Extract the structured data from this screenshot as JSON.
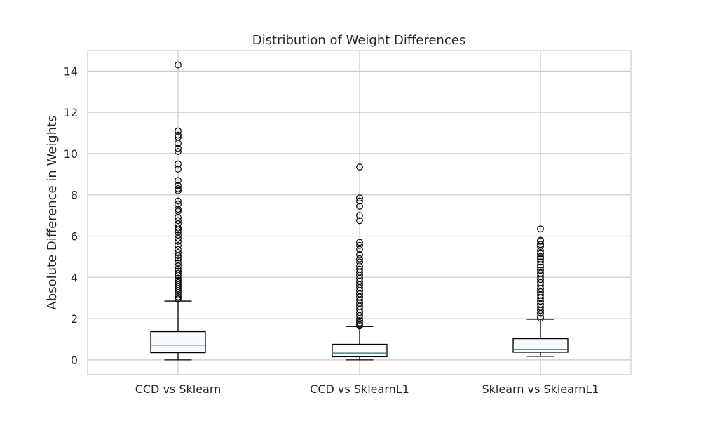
{
  "chart_data": {
    "type": "box",
    "title": "Distribution of Weight Differences",
    "xlabel": "",
    "ylabel": "Absolute Difference in Weights",
    "ylim": [
      -0.72,
      15.0
    ],
    "yticks": [
      0,
      2,
      4,
      6,
      8,
      10,
      12,
      14
    ],
    "grid": true,
    "categories": [
      "CCD vs Sklearn",
      "CCD vs SklearnL1",
      "Sklearn vs SklearnL1"
    ],
    "boxes": [
      {
        "label": "CCD vs Sklearn",
        "whisker_low": 0.0,
        "q1": 0.35,
        "median": 0.72,
        "q3": 1.37,
        "whisker_high": 2.85,
        "outliers": [
          14.3,
          11.1,
          10.9,
          10.8,
          10.5,
          10.25,
          10.1,
          9.5,
          9.25,
          8.7,
          8.45,
          8.3,
          8.2,
          7.7,
          7.55,
          7.3,
          7.2,
          6.9,
          6.75,
          6.6,
          6.4,
          6.3,
          6.2,
          6.05,
          5.9,
          5.75,
          5.55,
          5.35,
          5.2,
          5.05,
          4.95,
          4.85,
          4.7,
          4.55,
          4.4,
          4.3,
          4.2,
          4.1,
          3.95,
          3.85,
          3.75,
          3.65,
          3.55,
          3.45,
          3.35,
          3.25,
          3.15,
          3.05,
          2.95
        ]
      },
      {
        "label": "CCD vs SklearnL1",
        "whisker_low": 0.0,
        "q1": 0.15,
        "median": 0.33,
        "q3": 0.76,
        "whisker_high": 1.62,
        "outliers": [
          9.35,
          7.85,
          7.7,
          7.45,
          7.0,
          6.75,
          5.7,
          5.55,
          5.35,
          5.1,
          4.9,
          4.75,
          4.55,
          4.4,
          4.25,
          4.1,
          3.95,
          3.8,
          3.65,
          3.5,
          3.35,
          3.2,
          3.05,
          2.9,
          2.75,
          2.6,
          2.45,
          2.3,
          2.15,
          2.0,
          1.9,
          1.8,
          1.7,
          1.65
        ]
      },
      {
        "label": "Sklearn vs SklearnL1",
        "whisker_low": 0.17,
        "q1": 0.37,
        "median": 0.5,
        "q3": 1.03,
        "whisker_high": 1.97,
        "outliers": [
          6.35,
          5.8,
          5.75,
          5.6,
          5.5,
          5.3,
          5.15,
          5.0,
          4.9,
          4.75,
          4.6,
          4.5,
          4.35,
          4.2,
          4.05,
          3.9,
          3.75,
          3.6,
          3.45,
          3.3,
          3.15,
          3.0,
          2.85,
          2.7,
          2.55,
          2.4,
          2.25,
          2.1,
          2.02
        ]
      }
    ]
  }
}
